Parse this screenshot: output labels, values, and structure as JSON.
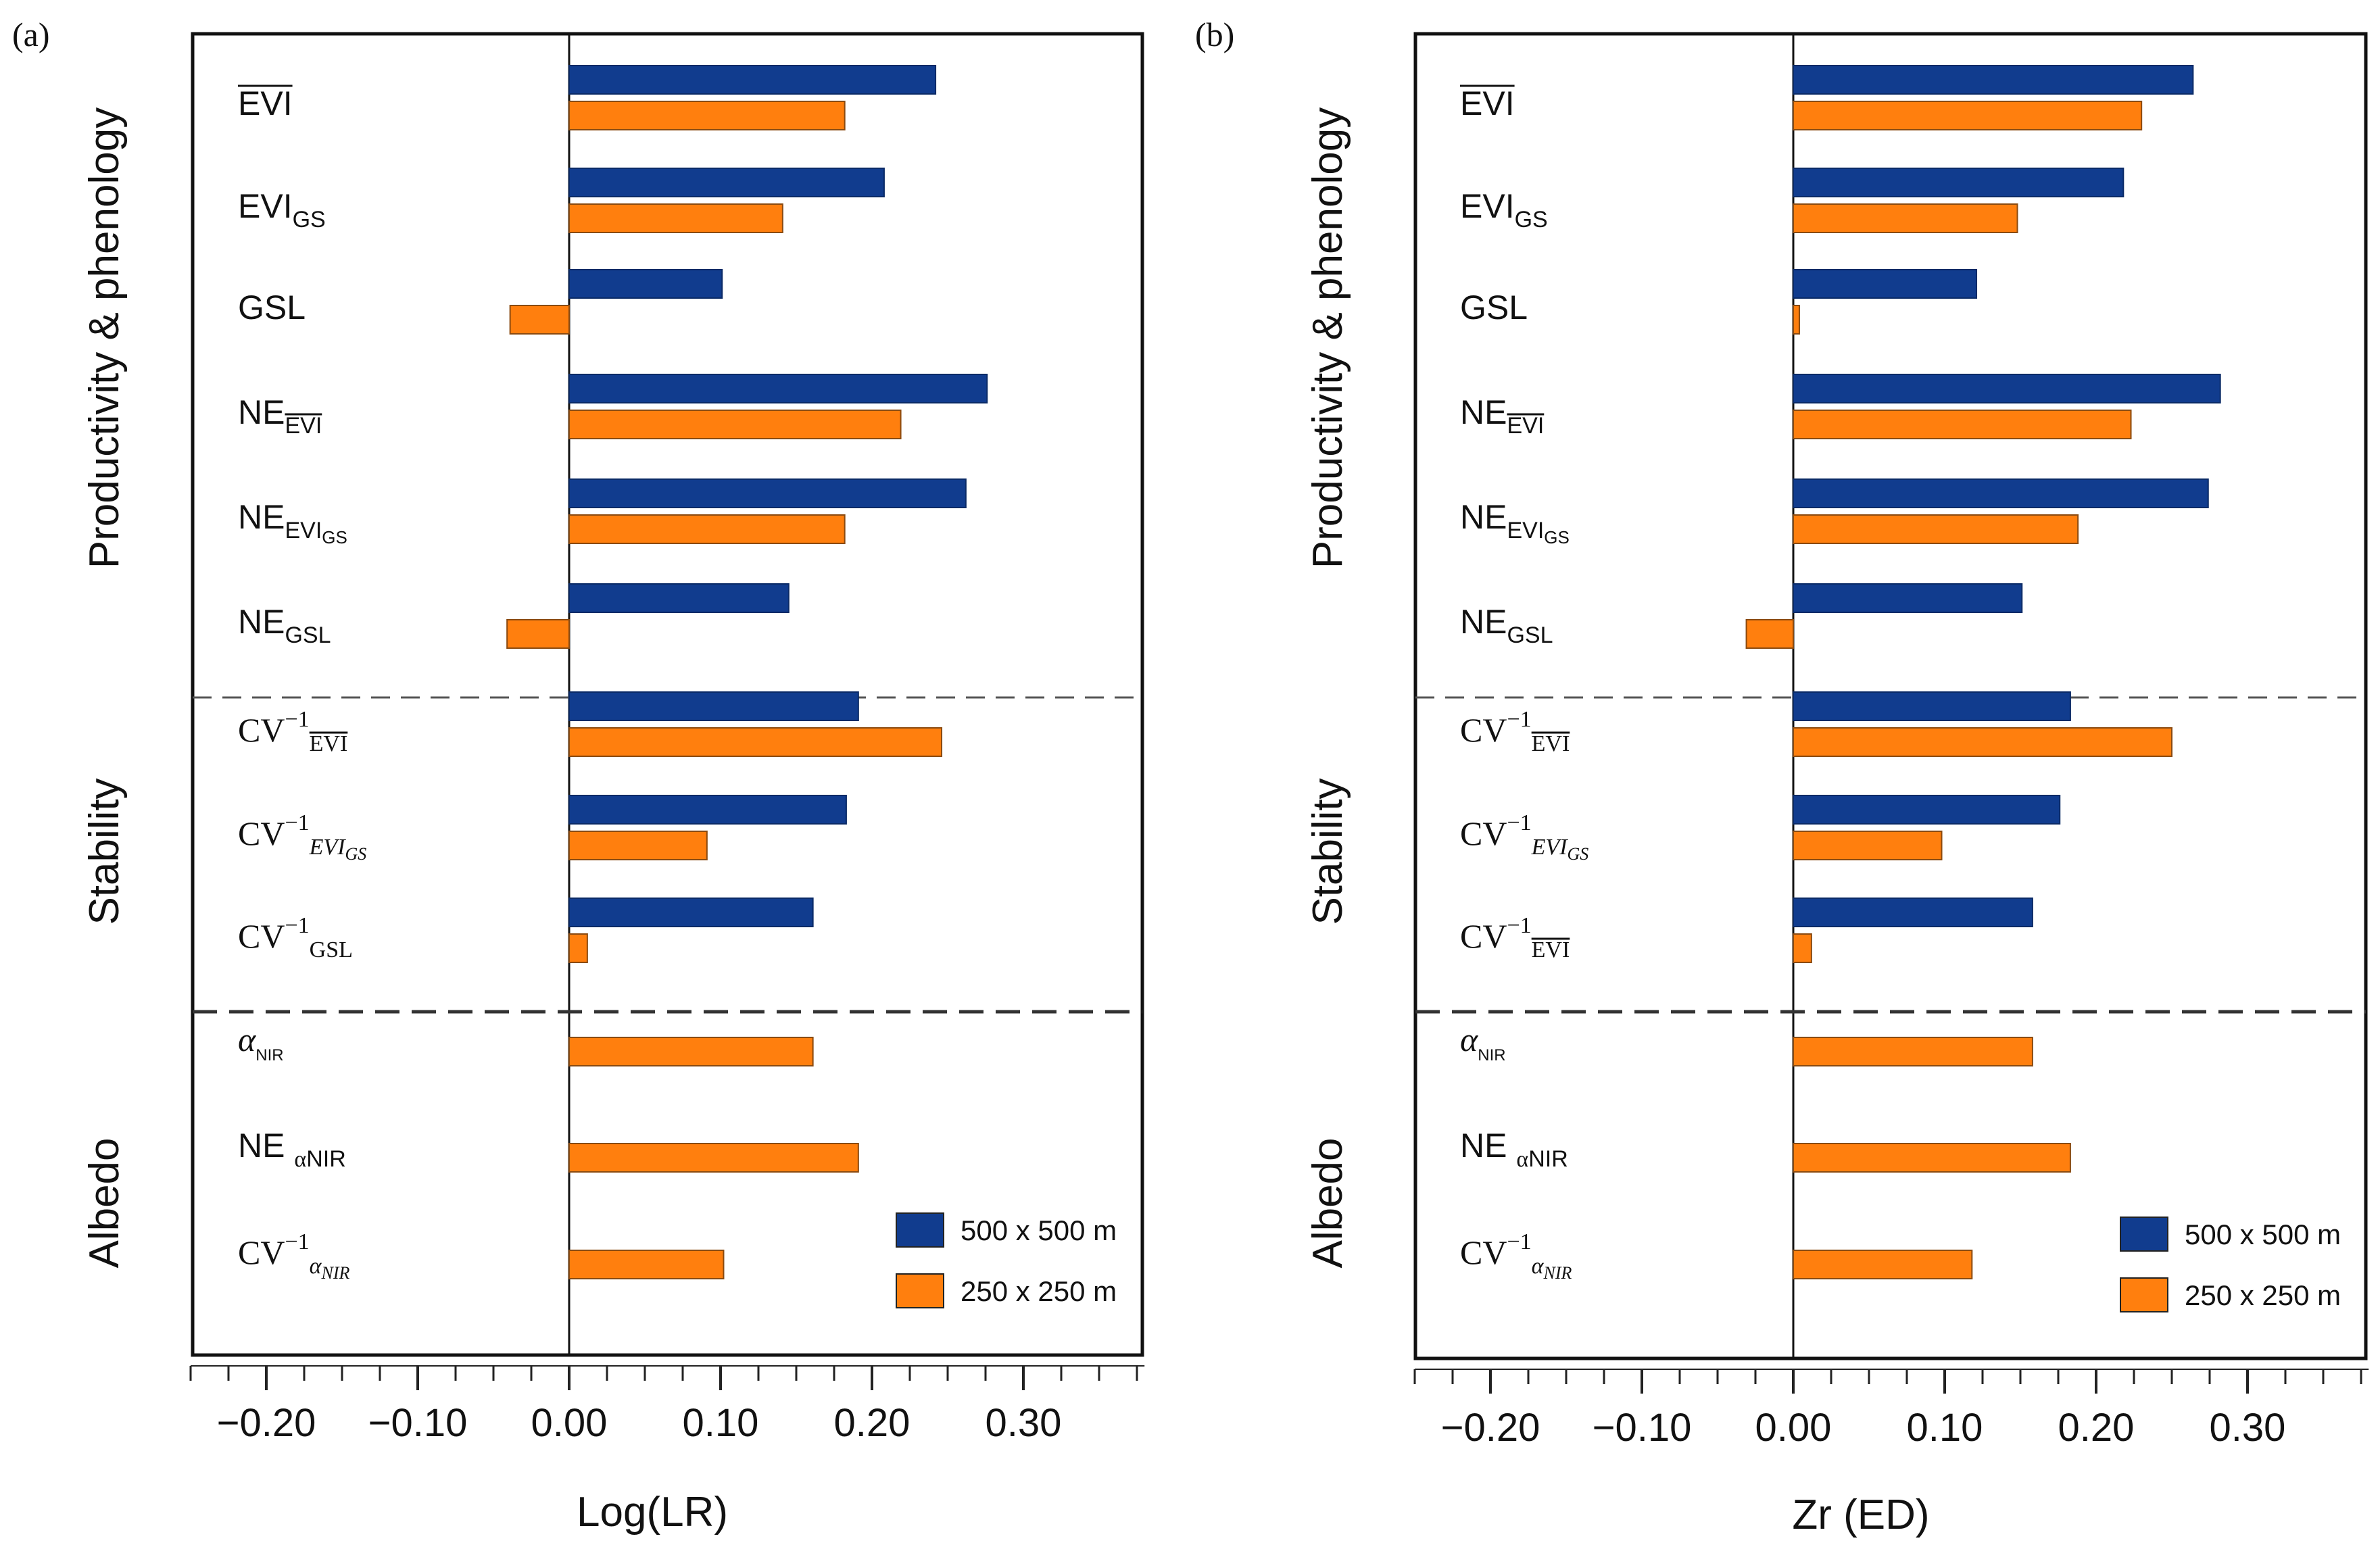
{
  "chart_data": [
    {
      "panel_label": "(a)",
      "type": "bar",
      "orientation": "horizontal",
      "xlabel": "Log(LR)",
      "xlim": [
        -0.25,
        0.38
      ],
      "xticks": [
        -0.2,
        -0.1,
        0.0,
        0.1,
        0.2,
        0.3
      ],
      "xtick_labels": [
        "−0.20",
        "−0.10",
        "0.00",
        "0.10",
        "0.20",
        "0.30"
      ],
      "groups": [
        {
          "label": "Productivity & phenology",
          "categories": [
            0,
            1,
            2,
            3,
            4,
            5
          ]
        },
        {
          "label": "Stability",
          "categories": [
            6,
            7,
            8
          ]
        },
        {
          "label": "Albedo",
          "categories": [
            9,
            10,
            11
          ]
        }
      ],
      "categories": [
        {
          "id": "EVI_mean",
          "parts": [
            {
              "t": "EVI",
              "over": true
            }
          ]
        },
        {
          "id": "EVI_GS",
          "parts": [
            {
              "t": "EVI"
            },
            {
              "t": "GS",
              "sub": true
            }
          ]
        },
        {
          "id": "GSL",
          "parts": [
            {
              "t": "GSL"
            }
          ]
        },
        {
          "id": "NE_EVI_mean",
          "parts": [
            {
              "t": "NE"
            },
            {
              "t": "EVI",
              "sub": true,
              "over": true
            }
          ]
        },
        {
          "id": "NE_EVI_GS",
          "parts": [
            {
              "t": "NE"
            },
            {
              "t": "EVI",
              "sub": true
            },
            {
              "t": "GS",
              "subsub": true
            }
          ]
        },
        {
          "id": "NE_GSL",
          "parts": [
            {
              "t": "NE"
            },
            {
              "t": "GSL",
              "sub": true
            }
          ]
        },
        {
          "id": "CV_EVI_mean",
          "parts": [
            {
              "t": "CV",
              "serif": true
            },
            {
              "t": "−1",
              "sup": true,
              "serif": true
            },
            {
              "t": "EVI",
              "sub": true,
              "over": true,
              "serif": true
            }
          ]
        },
        {
          "id": "CV_EVI_GS",
          "parts": [
            {
              "t": "CV",
              "serif": true
            },
            {
              "t": "−1",
              "sup": true,
              "serif": true
            },
            {
              "t": "EVI",
              "sub": true,
              "italic": true,
              "serif": true
            },
            {
              "t": "GS",
              "subsub": true,
              "italic": true,
              "serif": true
            }
          ]
        },
        {
          "id": "CV_GSL",
          "parts": [
            {
              "t": "CV",
              "serif": true
            },
            {
              "t": "−1",
              "sup": true,
              "serif": true
            },
            {
              "t": "GSL",
              "sub": true,
              "serif": true
            }
          ]
        },
        {
          "id": "alpha_NIR",
          "parts": [
            {
              "t": "α",
              "italic": true,
              "serif": true
            },
            {
              "t": "NIR",
              "sub": true,
              "small": true
            }
          ]
        },
        {
          "id": "NE_alpha_NIR",
          "parts": [
            {
              "t": "NE "
            },
            {
              "t": "α",
              "sub": true,
              "serif": true
            },
            {
              "t": "NIR",
              "sub": true
            }
          ]
        },
        {
          "id": "CV_alpha_NIR",
          "parts": [
            {
              "t": "CV",
              "serif": true
            },
            {
              "t": "−1",
              "sup": true,
              "serif": true
            },
            {
              "t": "α",
              "sub": true,
              "italic": true,
              "serif": true
            },
            {
              "t": "NIR",
              "subsub": true,
              "italic": true,
              "serif": true
            }
          ]
        }
      ],
      "series": [
        {
          "name": "500 x 500 m",
          "color": "#113c8e",
          "values": [
            0.242,
            0.208,
            0.101,
            0.276,
            0.262,
            0.145,
            0.191,
            0.183,
            0.161,
            null,
            null,
            null
          ]
        },
        {
          "name": "250 x 250 m",
          "color": "#ff7f0e",
          "values": [
            0.182,
            0.141,
            -0.039,
            0.219,
            0.182,
            -0.041,
            0.246,
            0.091,
            0.012,
            0.161,
            0.191,
            0.102
          ]
        }
      ],
      "legend": "bottom-right"
    },
    {
      "panel_label": "(b)",
      "type": "bar",
      "orientation": "horizontal",
      "xlabel": "Zr (ED)",
      "xlim": [
        -0.25,
        0.38
      ],
      "xticks": [
        -0.2,
        -0.1,
        0.0,
        0.1,
        0.2,
        0.3
      ],
      "xtick_labels": [
        "−0.20",
        "−0.10",
        "0.00",
        "0.10",
        "0.20",
        "0.30"
      ],
      "groups": [
        {
          "label": "Productivity & phenology",
          "categories": [
            0,
            1,
            2,
            3,
            4,
            5
          ]
        },
        {
          "label": "Stability",
          "categories": [
            6,
            7,
            8
          ]
        },
        {
          "label": "Albedo",
          "categories": [
            9,
            10,
            11
          ]
        }
      ],
      "categories": [
        {
          "id": "EVI_mean",
          "parts": [
            {
              "t": "EVI",
              "over": true
            }
          ]
        },
        {
          "id": "EVI_GS",
          "parts": [
            {
              "t": "EVI"
            },
            {
              "t": "GS",
              "sub": true
            }
          ]
        },
        {
          "id": "GSL",
          "parts": [
            {
              "t": "GSL"
            }
          ]
        },
        {
          "id": "NE_EVI_mean",
          "parts": [
            {
              "t": "NE"
            },
            {
              "t": "EVI",
              "sub": true,
              "over": true
            }
          ]
        },
        {
          "id": "NE_EVI_GS",
          "parts": [
            {
              "t": "NE"
            },
            {
              "t": "EVI",
              "sub": true
            },
            {
              "t": "GS",
              "subsub": true
            }
          ]
        },
        {
          "id": "NE_GSL",
          "parts": [
            {
              "t": "NE"
            },
            {
              "t": "GSL",
              "sub": true
            }
          ]
        },
        {
          "id": "CV_EVI_mean",
          "parts": [
            {
              "t": "CV",
              "serif": true
            },
            {
              "t": "−1",
              "sup": true,
              "serif": true
            },
            {
              "t": "EVI",
              "sub": true,
              "over": true,
              "serif": true
            }
          ]
        },
        {
          "id": "CV_EVI_GS",
          "parts": [
            {
              "t": "CV",
              "serif": true
            },
            {
              "t": "−1",
              "sup": true,
              "serif": true
            },
            {
              "t": "EVI",
              "sub": true,
              "italic": true,
              "serif": true
            },
            {
              "t": "GS",
              "subsub": true,
              "italic": true,
              "serif": true
            }
          ]
        },
        {
          "id": "CV_EVI_mean_2",
          "parts": [
            {
              "t": "CV",
              "serif": true
            },
            {
              "t": "−1",
              "sup": true,
              "serif": true
            },
            {
              "t": "EVI",
              "sub": true,
              "over": true,
              "serif": true
            }
          ]
        },
        {
          "id": "alpha_NIR",
          "parts": [
            {
              "t": "α",
              "italic": true,
              "serif": true
            },
            {
              "t": "NIR",
              "sub": true,
              "small": true
            }
          ]
        },
        {
          "id": "NE_alpha_NIR",
          "parts": [
            {
              "t": "NE "
            },
            {
              "t": "α",
              "sub": true,
              "serif": true
            },
            {
              "t": "NIR",
              "sub": true
            }
          ]
        },
        {
          "id": "CV_alpha_NIR",
          "parts": [
            {
              "t": "CV",
              "serif": true
            },
            {
              "t": "−1",
              "sup": true,
              "serif": true
            },
            {
              "t": "α",
              "sub": true,
              "italic": true,
              "serif": true
            },
            {
              "t": "NIR",
              "subsub": true,
              "italic": true,
              "serif": true
            }
          ]
        }
      ],
      "series": [
        {
          "name": "500 x 500 m",
          "color": "#113c8e",
          "values": [
            0.264,
            0.218,
            0.121,
            0.282,
            0.274,
            0.151,
            0.183,
            0.176,
            0.158,
            null,
            null,
            null
          ]
        },
        {
          "name": "250 x 250 m",
          "color": "#ff7f0e",
          "values": [
            0.23,
            0.148,
            0.004,
            0.223,
            0.188,
            -0.031,
            0.25,
            0.098,
            0.012,
            0.158,
            0.183,
            0.118
          ]
        }
      ],
      "legend": "bottom-right"
    }
  ]
}
